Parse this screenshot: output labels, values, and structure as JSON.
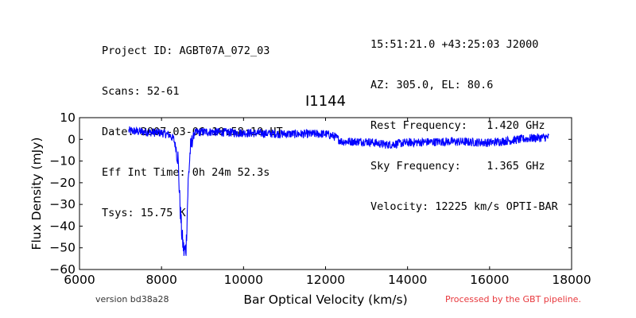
{
  "header": {
    "left": [
      "Project ID: AGBT07A_072_03",
      "Scans: 52-61",
      "Date: 2007-03-06 10:58:10 UT",
      "Eff Int Time: 0h 24m 52.3s",
      "Tsys: 15.75 K"
    ],
    "right": [
      "15:51:21.0 +43:25:03 J2000",
      "AZ: 305.0, EL: 80.6",
      "Rest Frequency:   1.420 GHz",
      "Sky Frequency:    1.365 GHz",
      "Velocity: 12225 km/s OPTI-BAR"
    ]
  },
  "footer": {
    "version": "version bd38a28",
    "processed": "Processed by the GBT pipeline."
  },
  "colors": {
    "series": "#0000ff",
    "processed_text": "#e8383d"
  },
  "chart_data": {
    "type": "line",
    "title": "I1144",
    "xlabel": "Bar Optical Velocity (km/s)",
    "ylabel": "Flux Density (mJy)",
    "xlim": [
      6000,
      18000
    ],
    "ylim": [
      -60,
      10
    ],
    "xticks": [
      6000,
      8000,
      10000,
      12000,
      14000,
      16000,
      18000
    ],
    "yticks": [
      -60,
      -50,
      -40,
      -30,
      -20,
      -10,
      0,
      10
    ],
    "grid": false,
    "series": [
      {
        "x": [
          7200,
          7500,
          8000,
          8200,
          8300,
          8400,
          8450,
          8500,
          8550,
          8600,
          8650,
          8700,
          8800,
          9000,
          10000,
          11000,
          12000,
          12200,
          12400,
          13000,
          13500,
          14000,
          15000,
          16000,
          17000,
          17450
        ],
        "y": [
          4,
          3.5,
          3,
          2,
          0,
          -8,
          -30,
          -45,
          -52,
          -50,
          -20,
          -5,
          3,
          3.5,
          3,
          2.5,
          2.5,
          1.5,
          -1,
          -1,
          -2.5,
          -1.5,
          -1,
          -1.5,
          0.5,
          1
        ],
        "noise": 2
      }
    ]
  }
}
